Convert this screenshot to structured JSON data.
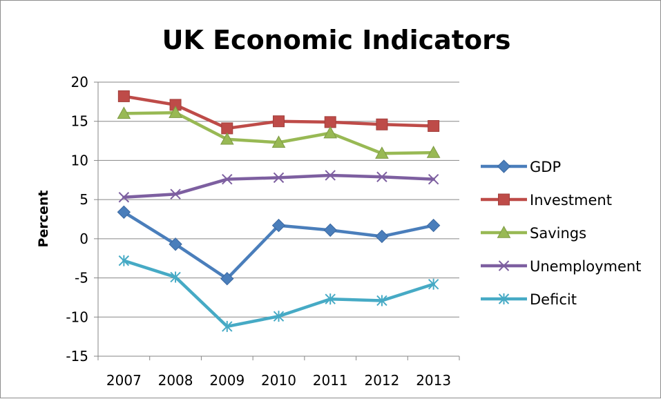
{
  "chart_data": {
    "type": "line",
    "title": "UK Economic Indicators",
    "ylabel": "Percent",
    "xlabel": "",
    "categories": [
      "2007",
      "2008",
      "2009",
      "2010",
      "2011",
      "2012",
      "2013"
    ],
    "ylim": [
      -15,
      20
    ],
    "yticks": [
      20,
      15,
      10,
      5,
      0,
      -5,
      -10,
      -15
    ],
    "grid": "horizontal",
    "legend_position": "right",
    "series": [
      {
        "name": "GDP",
        "color": "#4a7ebb",
        "marker": "diamond",
        "values": [
          3.4,
          -0.7,
          -5.1,
          1.7,
          1.1,
          0.3,
          1.7
        ]
      },
      {
        "name": "Investment",
        "color": "#be4b48",
        "marker": "square",
        "values": [
          18.2,
          17.1,
          14.1,
          15.0,
          14.9,
          14.6,
          14.4
        ]
      },
      {
        "name": "Savings",
        "color": "#98b954",
        "marker": "triangle",
        "values": [
          16.0,
          16.1,
          12.7,
          12.3,
          13.5,
          10.9,
          11.0
        ]
      },
      {
        "name": "Unemployment",
        "color": "#7d5fa0",
        "marker": "x",
        "values": [
          5.3,
          5.7,
          7.6,
          7.8,
          8.1,
          7.9,
          7.6
        ]
      },
      {
        "name": "Deficit",
        "color": "#46aac5",
        "marker": "asterisk",
        "values": [
          -2.8,
          -4.9,
          -11.2,
          -9.9,
          -7.7,
          -7.9,
          -5.8
        ]
      }
    ]
  }
}
